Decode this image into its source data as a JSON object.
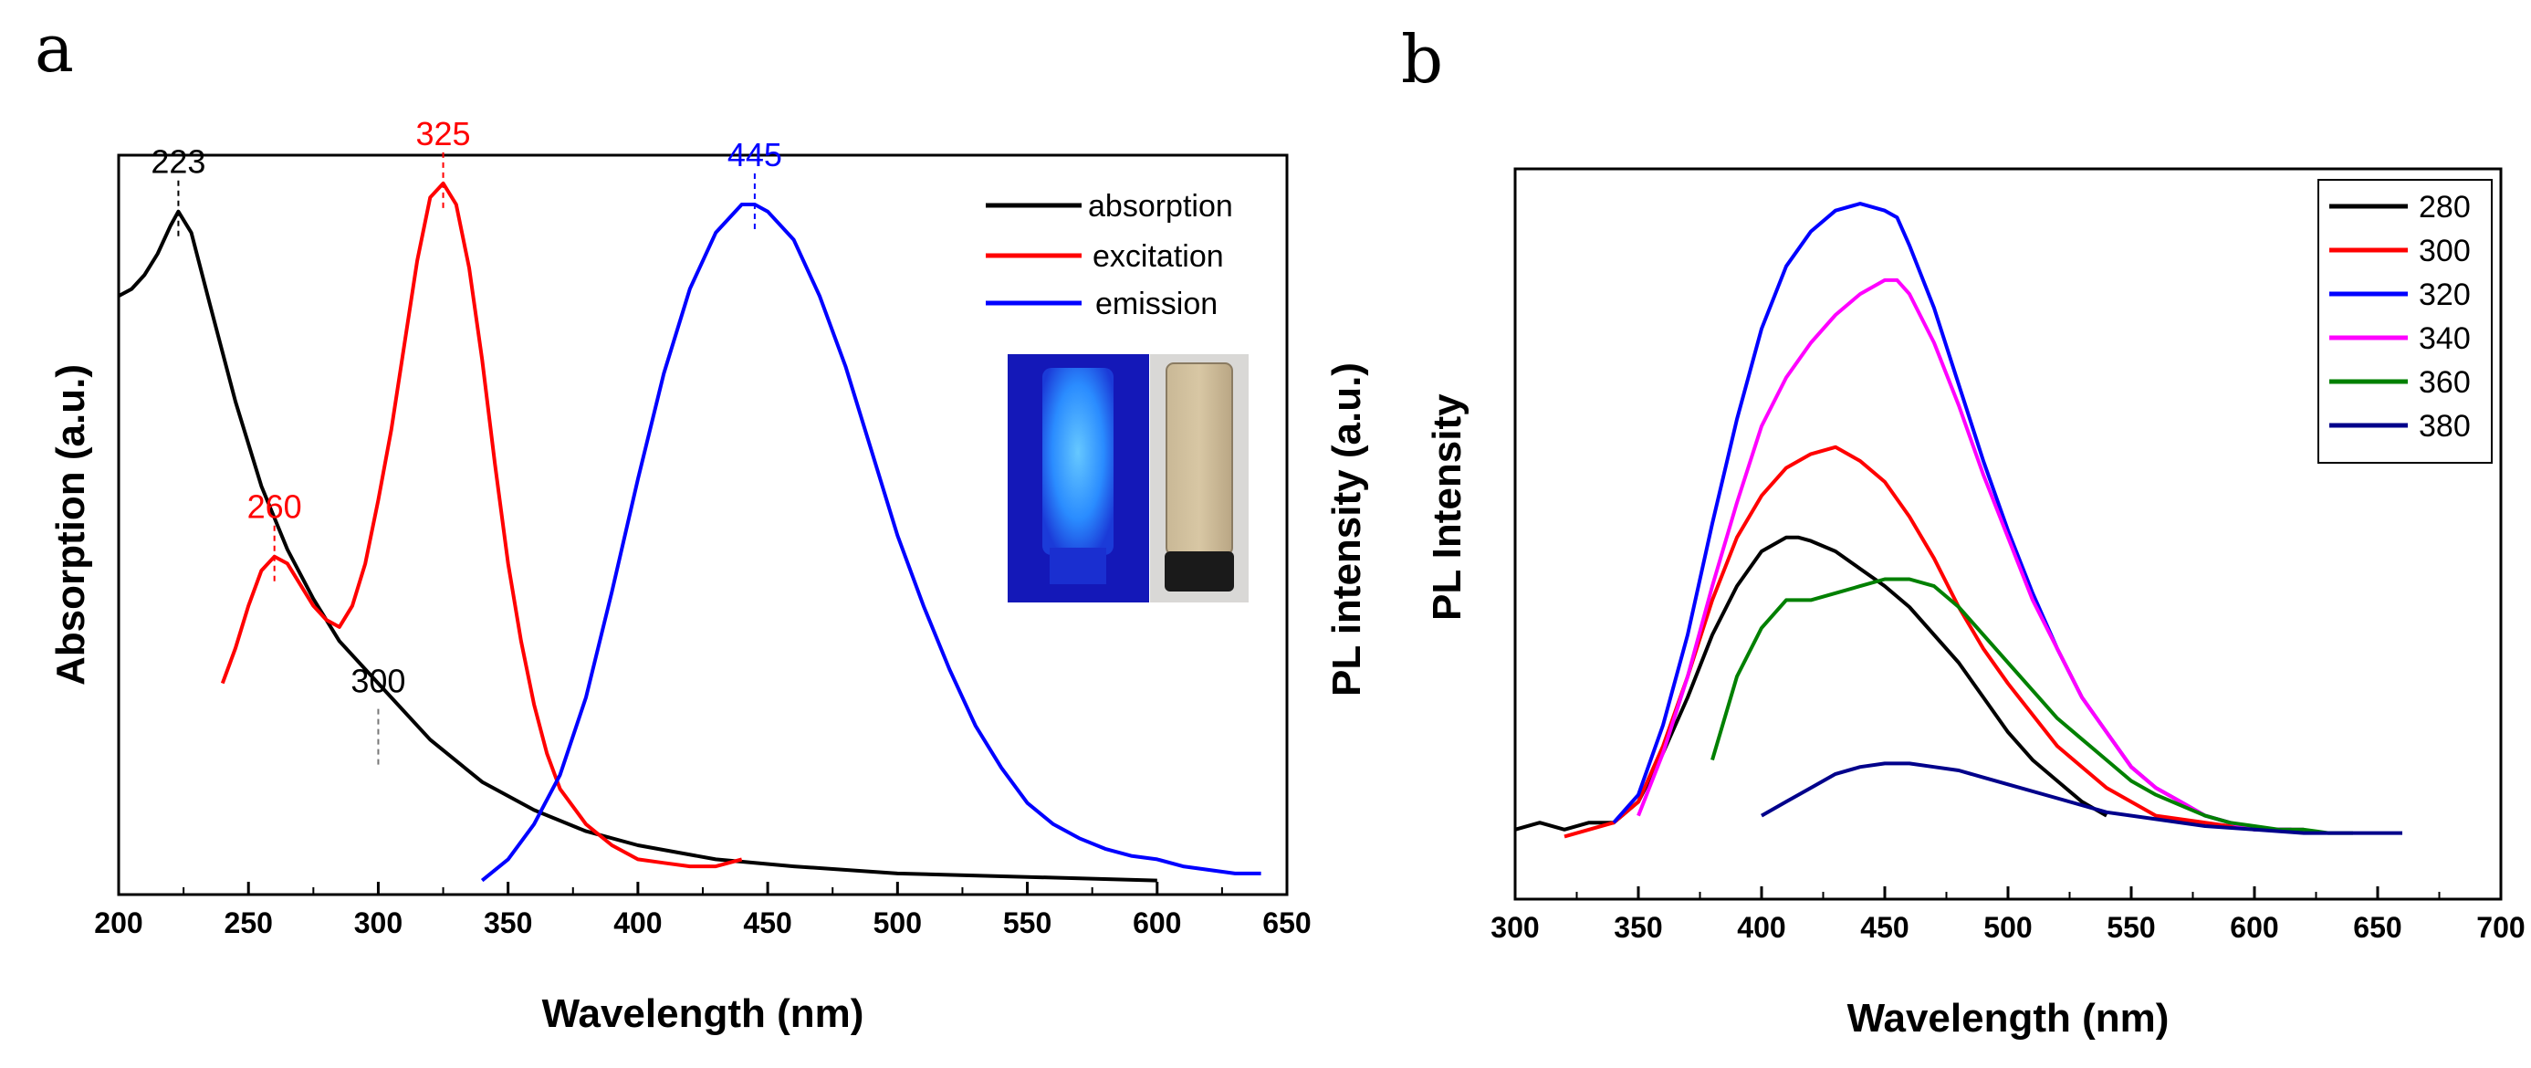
{
  "panels": {
    "a": {
      "label": "a"
    },
    "b": {
      "label": "b"
    }
  },
  "colors": {
    "absorption": "#000000",
    "excitation": "#ff0000",
    "emission": "#0000ff",
    "s280": "#000000",
    "s300": "#ff0000",
    "s320": "#0000ff",
    "s340": "#ff00ff",
    "s360": "#008000",
    "s380": "#00008b"
  },
  "inset": {
    "description": "photo of two vials: blue fluorescent vial under UV and tan vial under daylight",
    "icon": "vial-photo-icon"
  },
  "chart_data": [
    {
      "id": "a",
      "type": "line",
      "title": "",
      "xlabel": "Wavelength (nm)",
      "ylabel": "Absorption (a.u.)",
      "xlim": [
        200,
        650
      ],
      "ylim": [
        0,
        1.05
      ],
      "xticks": [
        200,
        250,
        300,
        350,
        400,
        450,
        500,
        550,
        600,
        650
      ],
      "tick_labels": [
        "200",
        "250",
        "300",
        "350",
        "400",
        "450",
        "500",
        "550",
        "600",
        "650"
      ],
      "legend_position": "top-right",
      "series": [
        {
          "name": "absorption",
          "color_key": "absorption",
          "x": [
            200,
            205,
            210,
            215,
            220,
            223,
            228,
            235,
            245,
            255,
            265,
            275,
            285,
            300,
            320,
            340,
            360,
            380,
            400,
            430,
            460,
            500,
            550,
            600
          ],
          "y": [
            0.85,
            0.86,
            0.88,
            0.91,
            0.95,
            0.97,
            0.94,
            0.84,
            0.7,
            0.58,
            0.49,
            0.42,
            0.36,
            0.3,
            0.22,
            0.16,
            0.12,
            0.09,
            0.07,
            0.05,
            0.04,
            0.03,
            0.025,
            0.02
          ]
        },
        {
          "name": "excitation",
          "color_key": "excitation",
          "x": [
            240,
            245,
            250,
            255,
            260,
            265,
            270,
            275,
            280,
            285,
            290,
            295,
            300,
            305,
            310,
            315,
            320,
            325,
            330,
            335,
            340,
            345,
            350,
            355,
            360,
            365,
            370,
            380,
            390,
            400,
            410,
            420,
            430,
            440
          ],
          "y": [
            0.3,
            0.35,
            0.41,
            0.46,
            0.48,
            0.47,
            0.44,
            0.41,
            0.39,
            0.38,
            0.41,
            0.47,
            0.56,
            0.66,
            0.78,
            0.9,
            0.99,
            1.01,
            0.98,
            0.89,
            0.76,
            0.61,
            0.47,
            0.36,
            0.27,
            0.2,
            0.15,
            0.1,
            0.07,
            0.05,
            0.045,
            0.04,
            0.04,
            0.05
          ]
        },
        {
          "name": "emission",
          "color_key": "emission",
          "x": [
            340,
            350,
            360,
            370,
            380,
            390,
            400,
            410,
            420,
            430,
            440,
            445,
            450,
            460,
            470,
            480,
            490,
            500,
            510,
            520,
            530,
            540,
            550,
            560,
            570,
            580,
            590,
            600,
            610,
            620,
            630,
            640
          ],
          "y": [
            0.02,
            0.05,
            0.1,
            0.17,
            0.28,
            0.43,
            0.59,
            0.74,
            0.86,
            0.94,
            0.98,
            0.98,
            0.97,
            0.93,
            0.85,
            0.75,
            0.63,
            0.51,
            0.41,
            0.32,
            0.24,
            0.18,
            0.13,
            0.1,
            0.08,
            0.065,
            0.055,
            0.05,
            0.04,
            0.035,
            0.03,
            0.03
          ]
        }
      ],
      "annotations": [
        {
          "text": "223",
          "x": 223,
          "y": 0.97,
          "color_key": "absorption"
        },
        {
          "text": "325",
          "x": 325,
          "y": 1.01,
          "color_key": "excitation"
        },
        {
          "text": "445",
          "x": 445,
          "y": 0.98,
          "color_key": "emission"
        },
        {
          "text": "260",
          "x": 260,
          "y": 0.48,
          "color_key": "excitation"
        },
        {
          "text": "300",
          "x": 300,
          "y": 0.3,
          "color_key": "absorption"
        }
      ]
    },
    {
      "id": "b",
      "type": "line",
      "title": "",
      "xlabel": "Wavelength (nm)",
      "ylabel": "PL intensity (a.u.)",
      "ylabel2": "PL Intensity",
      "xlim": [
        300,
        700
      ],
      "ylim": [
        0,
        1.05
      ],
      "xticks": [
        300,
        350,
        400,
        450,
        500,
        550,
        600,
        650,
        700
      ],
      "tick_labels": [
        "300",
        "350",
        "400",
        "450",
        "500",
        "550",
        "600",
        "650",
        "700"
      ],
      "legend_position": "top-right",
      "series": [
        {
          "name": "280",
          "color_key": "s280",
          "x": [
            300,
            310,
            320,
            330,
            340,
            350,
            360,
            370,
            380,
            390,
            400,
            410,
            415,
            420,
            430,
            440,
            450,
            460,
            470,
            480,
            490,
            500,
            510,
            520,
            530,
            540
          ],
          "y": [
            0.1,
            0.11,
            0.1,
            0.11,
            0.11,
            0.14,
            0.21,
            0.29,
            0.38,
            0.45,
            0.5,
            0.52,
            0.52,
            0.515,
            0.5,
            0.475,
            0.45,
            0.42,
            0.38,
            0.34,
            0.29,
            0.24,
            0.2,
            0.17,
            0.14,
            0.12
          ]
        },
        {
          "name": "300",
          "color_key": "s300",
          "x": [
            320,
            330,
            340,
            350,
            360,
            370,
            380,
            390,
            400,
            410,
            420,
            430,
            440,
            450,
            460,
            470,
            480,
            490,
            500,
            520,
            540,
            560,
            580,
            600,
            615
          ],
          "y": [
            0.09,
            0.1,
            0.11,
            0.14,
            0.22,
            0.32,
            0.43,
            0.52,
            0.58,
            0.62,
            0.64,
            0.65,
            0.63,
            0.6,
            0.55,
            0.49,
            0.42,
            0.36,
            0.31,
            0.22,
            0.16,
            0.12,
            0.11,
            0.1,
            0.1
          ]
        },
        {
          "name": "320",
          "color_key": "s320",
          "x": [
            340,
            350,
            360,
            370,
            380,
            390,
            400,
            410,
            420,
            430,
            440,
            450,
            455,
            460,
            470,
            480,
            490,
            500,
            510,
            520,
            530,
            540,
            550,
            560,
            570,
            580,
            590,
            600,
            610,
            615
          ],
          "y": [
            0.11,
            0.15,
            0.25,
            0.38,
            0.54,
            0.69,
            0.82,
            0.91,
            0.96,
            0.99,
            1.0,
            0.99,
            0.98,
            0.94,
            0.85,
            0.74,
            0.63,
            0.53,
            0.44,
            0.36,
            0.29,
            0.24,
            0.19,
            0.16,
            0.14,
            0.12,
            0.11,
            0.1,
            0.1,
            0.1
          ]
        },
        {
          "name": "340",
          "color_key": "s340",
          "x": [
            350,
            360,
            370,
            380,
            390,
            400,
            410,
            420,
            430,
            440,
            450,
            455,
            460,
            470,
            480,
            490,
            500,
            510,
            520,
            530,
            540,
            550,
            560,
            570,
            580,
            590,
            600,
            610,
            620
          ],
          "y": [
            0.12,
            0.21,
            0.32,
            0.45,
            0.57,
            0.68,
            0.75,
            0.8,
            0.84,
            0.87,
            0.89,
            0.89,
            0.87,
            0.8,
            0.71,
            0.61,
            0.52,
            0.43,
            0.36,
            0.29,
            0.24,
            0.19,
            0.16,
            0.14,
            0.12,
            0.11,
            0.1,
            0.1,
            0.1
          ]
        },
        {
          "name": "360",
          "color_key": "s360",
          "x": [
            380,
            390,
            400,
            410,
            420,
            430,
            440,
            450,
            460,
            470,
            480,
            490,
            500,
            510,
            520,
            530,
            540,
            550,
            560,
            570,
            580,
            590,
            600,
            610,
            620,
            630,
            640
          ],
          "y": [
            0.2,
            0.32,
            0.39,
            0.43,
            0.43,
            0.44,
            0.45,
            0.46,
            0.46,
            0.45,
            0.42,
            0.38,
            0.34,
            0.3,
            0.26,
            0.23,
            0.2,
            0.17,
            0.15,
            0.135,
            0.12,
            0.11,
            0.105,
            0.1,
            0.1,
            0.095,
            0.095
          ]
        },
        {
          "name": "380",
          "color_key": "s380",
          "x": [
            400,
            410,
            420,
            430,
            440,
            450,
            460,
            470,
            480,
            490,
            500,
            520,
            540,
            560,
            580,
            600,
            620,
            640,
            660
          ],
          "y": [
            0.12,
            0.14,
            0.16,
            0.18,
            0.19,
            0.195,
            0.195,
            0.19,
            0.185,
            0.175,
            0.165,
            0.145,
            0.125,
            0.115,
            0.105,
            0.1,
            0.095,
            0.095,
            0.095
          ]
        }
      ]
    }
  ]
}
